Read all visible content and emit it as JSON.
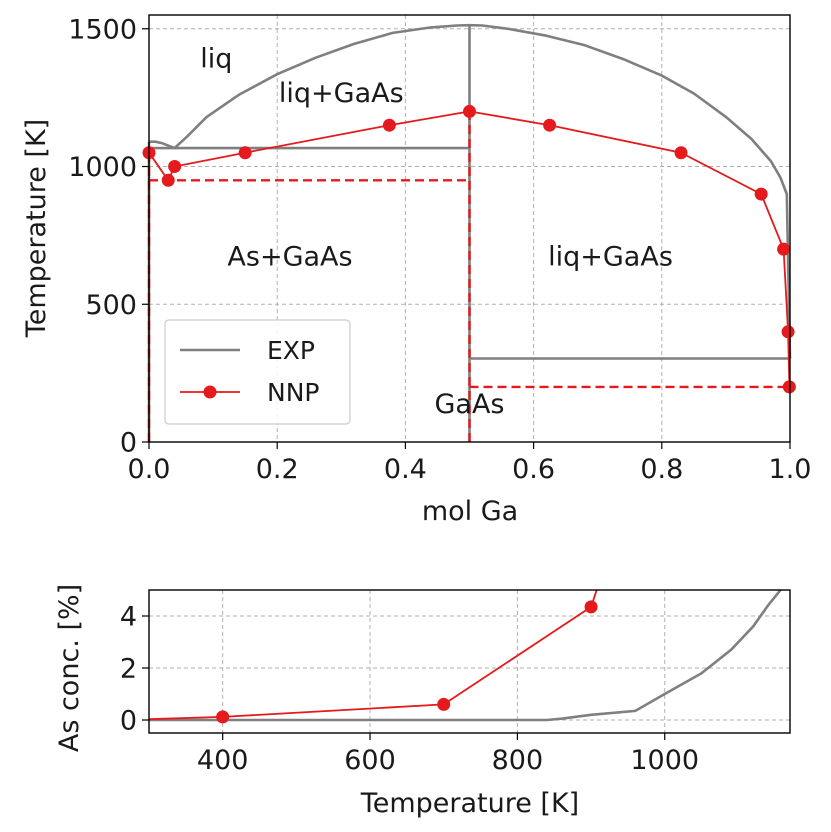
{
  "colors": {
    "exp": "#7f7f7f",
    "nnp": "#e41a1c",
    "grid": "#b0b0b0"
  },
  "chart_data": [
    {
      "type": "line",
      "title": "",
      "xlabel": "mol Ga",
      "ylabel": "Temperature [K]",
      "xlim": [
        0.0,
        1.0
      ],
      "ylim": [
        0,
        1550
      ],
      "xticks": [
        0.0,
        0.2,
        0.4,
        0.6,
        0.8,
        1.0
      ],
      "xtick_labels": [
        "0.0",
        "0.2",
        "0.4",
        "0.6",
        "0.8",
        "1.0"
      ],
      "yticks": [
        0,
        500,
        1000,
        1500
      ],
      "ytick_labels": [
        "0",
        "500",
        "1000",
        "1500"
      ],
      "grid": true,
      "legend": {
        "position": "lower-left",
        "entries": [
          "EXP",
          "NNP"
        ]
      },
      "annotations": [
        {
          "text": "liq",
          "x": 0.105,
          "y": 1360
        },
        {
          "text": "liq+GaAs",
          "x": 0.3,
          "y": 1235
        },
        {
          "text": "As+GaAs",
          "x": 0.22,
          "y": 640
        },
        {
          "text": "liq+GaAs",
          "x": 0.72,
          "y": 640
        },
        {
          "text": "GaAs",
          "x": 0.5,
          "y": 105
        }
      ],
      "series": [
        {
          "name": "EXP",
          "segments": [
            {
              "label": "liquidus-left",
              "x": [
                0.0,
                0.01,
                0.02,
                0.04,
                0.06,
                0.09,
                0.14,
                0.2,
                0.26,
                0.32,
                0.38,
                0.44,
                0.48,
                0.5
              ],
              "y": [
                1090,
                1090,
                1085,
                1067,
                1110,
                1180,
                1260,
                1335,
                1395,
                1445,
                1485,
                1505,
                1512,
                1513
              ]
            },
            {
              "label": "liquidus-right",
              "x": [
                0.5,
                0.52,
                0.56,
                0.62,
                0.68,
                0.74,
                0.8,
                0.85,
                0.9,
                0.94,
                0.97,
                0.985,
                0.995,
                1.0
              ],
              "y": [
                1513,
                1512,
                1500,
                1475,
                1440,
                1390,
                1330,
                1265,
                1180,
                1100,
                1020,
                960,
                900,
                303
              ]
            },
            {
              "label": "eutectic",
              "x": [
                0.0,
                0.5
              ],
              "y": [
                1067,
                1067
              ]
            },
            {
              "label": "GaAs-line",
              "x": [
                0.5,
                0.5
              ],
              "y": [
                0,
                1513
              ]
            },
            {
              "label": "Ga-melting",
              "x": [
                0.5,
                1.0
              ],
              "y": [
                303,
                303
              ]
            },
            {
              "label": "As-edge",
              "x": [
                0.0,
                0.0
              ],
              "y": [
                0,
                1090
              ]
            }
          ]
        },
        {
          "name": "NNP",
          "points": {
            "x": [
              0.0,
              0.03,
              0.04,
              0.15,
              0.375,
              0.5,
              0.625,
              0.83,
              0.955,
              0.99,
              0.997,
              0.999
            ],
            "y": [
              1050,
              950,
              1000,
              1050,
              1150,
              1200,
              1150,
              1050,
              900,
              700,
              400,
              200
            ]
          },
          "dashed_segments": [
            {
              "label": "eutectic",
              "x": [
                0.0,
                0.5
              ],
              "y": [
                950,
                950
              ]
            },
            {
              "label": "GaAs-line",
              "x": [
                0.5,
                0.5
              ],
              "y": [
                0,
                1200
              ]
            },
            {
              "label": "Ga-melting",
              "x": [
                0.5,
                1.0
              ],
              "y": [
                200,
                200
              ]
            },
            {
              "label": "As-edge",
              "x": [
                0.0,
                0.0
              ],
              "y": [
                0,
                1050
              ]
            }
          ]
        }
      ]
    },
    {
      "type": "line",
      "title": "",
      "xlabel": "Temperature [K]",
      "ylabel": "As conc. [%]",
      "xlim": [
        300,
        1170
      ],
      "ylim": [
        -0.5,
        5
      ],
      "xticks": [
        400,
        600,
        800,
        1000
      ],
      "xtick_labels": [
        "400",
        "600",
        "800",
        "1000"
      ],
      "yticks": [
        0,
        2,
        4
      ],
      "ytick_labels": [
        "0",
        "2",
        "4"
      ],
      "grid": true,
      "series": [
        {
          "name": "EXP",
          "x": [
            300,
            500,
            700,
            840,
            860,
            900,
            960,
            1000,
            1050,
            1090,
            1120,
            1140,
            1160
          ],
          "y": [
            0.0,
            0.0,
            0.0,
            0.0,
            0.05,
            0.2,
            0.35,
            1.0,
            1.8,
            2.7,
            3.6,
            4.4,
            5.1
          ]
        },
        {
          "name": "NNP",
          "x": [
            300,
            400,
            700,
            900,
            910
          ],
          "y": [
            0.03,
            0.12,
            0.6,
            4.35,
            5.2
          ],
          "markers_x": [
            400,
            700,
            900
          ],
          "markers_y": [
            0.12,
            0.6,
            4.35
          ]
        }
      ]
    }
  ]
}
